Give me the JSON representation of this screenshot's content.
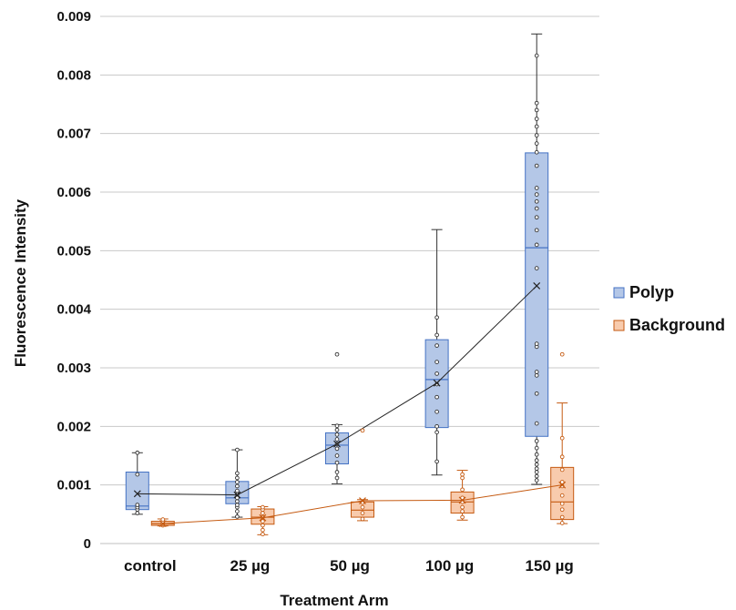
{
  "chart_data": {
    "type": "box",
    "title": "",
    "xlabel": "Treatment Arm",
    "ylabel": "Fluorescence Intensity",
    "ylim": [
      0,
      0.009
    ],
    "yticks": [
      "0",
      "0.001",
      "0.002",
      "0.003",
      "0.004",
      "0.005",
      "0.006",
      "0.007",
      "0.008",
      "0.009"
    ],
    "grid": "horizontal",
    "legend_position": "right",
    "categories": [
      "control",
      "25 µg",
      "50 µg",
      "100 µg",
      "150 µg"
    ],
    "series": [
      {
        "name": "Polyp",
        "color": "#4472c4",
        "fill": "#b4c7e7",
        "boxes": [
          {
            "min": 0.0005,
            "q1": 0.00058,
            "median": 0.00064,
            "q3": 0.00122,
            "max": 0.00155,
            "mean": 0.00085,
            "points": [
              0.00052,
              0.00058,
              0.00062,
              0.00066,
              0.00118,
              0.00155
            ]
          },
          {
            "min": 0.00045,
            "q1": 0.00068,
            "median": 0.00078,
            "q3": 0.00106,
            "max": 0.0016,
            "mean": 0.00083,
            "points": [
              0.00046,
              0.00055,
              0.00062,
              0.00066,
              0.00072,
              0.00078,
              0.00084,
              0.0009,
              0.00098,
              0.00105,
              0.00112,
              0.0012,
              0.0016
            ]
          },
          {
            "min": 0.00102,
            "q1": 0.00136,
            "median": 0.00168,
            "q3": 0.00189,
            "max": 0.00203,
            "mean": 0.0017,
            "points": [
              0.00112,
              0.00122,
              0.00138,
              0.0015,
              0.00162,
              0.0017,
              0.00178,
              0.00186,
              0.00194,
              0.00201,
              0.00323
            ]
          },
          {
            "min": 0.00117,
            "q1": 0.00198,
            "median": 0.0028,
            "q3": 0.00348,
            "max": 0.00536,
            "mean": 0.00274,
            "points": [
              0.0014,
              0.0019,
              0.002,
              0.00225,
              0.0025,
              0.00272,
              0.0029,
              0.0031,
              0.00338,
              0.00356,
              0.00386
            ]
          },
          {
            "min": 0.00101,
            "q1": 0.00183,
            "median": 0.00505,
            "q3": 0.00667,
            "max": 0.0087,
            "mean": 0.0044,
            "points": [
              0.00108,
              0.00115,
              0.00122,
              0.00128,
              0.00135,
              0.00142,
              0.00152,
              0.00163,
              0.00175,
              0.00205,
              0.00256,
              0.00287,
              0.00293,
              0.00336,
              0.00341,
              0.0047,
              0.0051,
              0.00535,
              0.00557,
              0.00572,
              0.00584,
              0.00596,
              0.00607,
              0.00645,
              0.00668,
              0.00683,
              0.00697,
              0.00712,
              0.00725,
              0.0074,
              0.00752,
              0.00833
            ]
          }
        ]
      },
      {
        "name": "Background",
        "color": "#c55a11",
        "fill": "#f8cbad",
        "boxes": [
          {
            "min": 0.0003,
            "q1": 0.00031,
            "median": 0.00034,
            "q3": 0.00038,
            "max": 0.00042,
            "mean": 0.00034,
            "points": [
              0.00031,
              0.00033,
              0.00035,
              0.00038,
              0.00041
            ]
          },
          {
            "min": 0.00015,
            "q1": 0.00033,
            "median": 0.00045,
            "q3": 0.00059,
            "max": 0.00063,
            "mean": 0.00044,
            "points": [
              0.00016,
              0.00023,
              0.00031,
              0.00038,
              0.00045,
              0.00052,
              0.00058,
              0.00062
            ]
          },
          {
            "min": 0.00039,
            "q1": 0.00045,
            "median": 0.00057,
            "q3": 0.00071,
            "max": 0.00075,
            "mean": 0.00073,
            "points": [
              0.00042,
              0.00052,
              0.00062,
              0.0007,
              0.00193
            ]
          },
          {
            "min": 0.0004,
            "q1": 0.00052,
            "median": 0.00071,
            "q3": 0.00088,
            "max": 0.00125,
            "mean": 0.00074,
            "points": [
              0.00045,
              0.00055,
              0.00062,
              0.00071,
              0.00078,
              0.00092,
              0.00112,
              0.00118
            ]
          },
          {
            "min": 0.00034,
            "q1": 0.00041,
            "median": 0.00071,
            "q3": 0.0013,
            "max": 0.0024,
            "mean": 0.001,
            "points": [
              0.00035,
              0.00045,
              0.00058,
              0.00068,
              0.00082,
              0.00098,
              0.00105,
              0.00126,
              0.00148,
              0.0018,
              0.00323
            ]
          }
        ]
      }
    ]
  }
}
